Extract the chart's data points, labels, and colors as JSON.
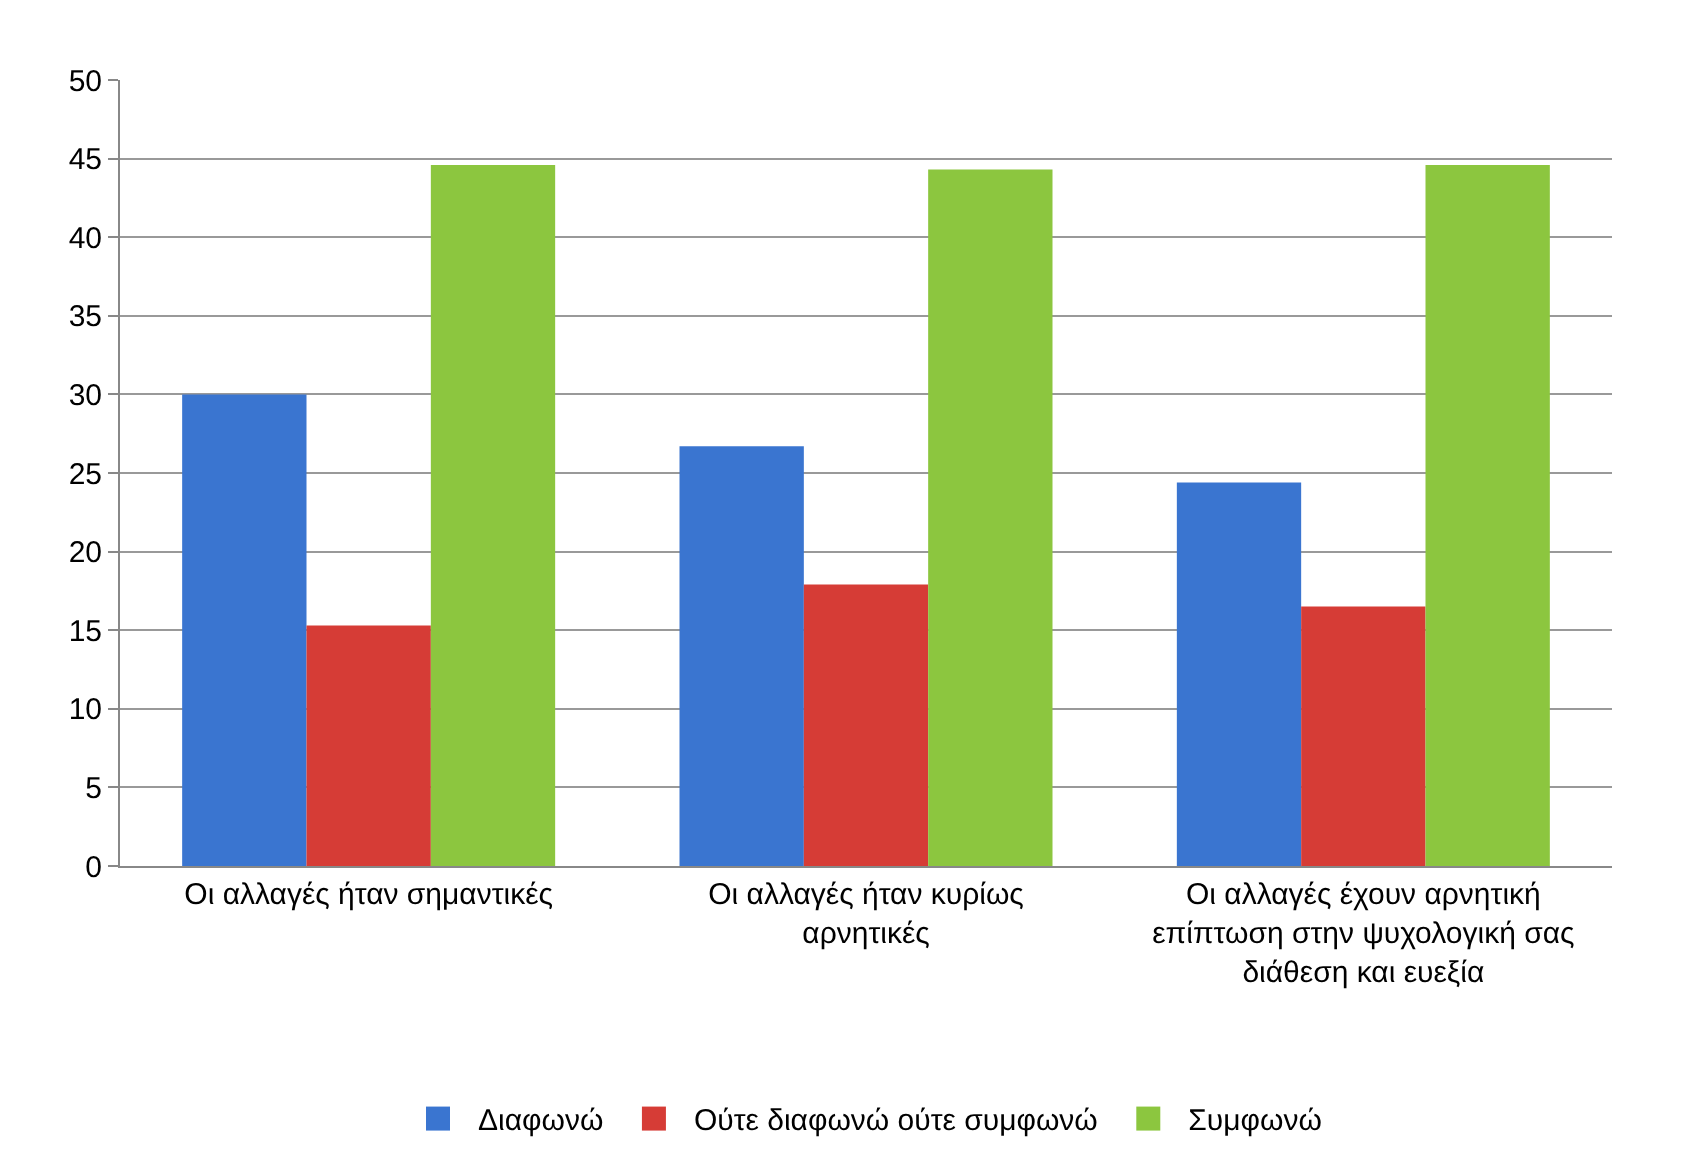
{
  "chart_data": {
    "type": "bar",
    "categories": [
      "Οι αλλαγές ήταν σημαντικές",
      "Οι αλλαγές ήταν κυρίως αρνητικές",
      "Οι αλλαγές έχουν αρνητική επίπτωση στην ψυχολογική σας διάθεση και ευεξία"
    ],
    "series": [
      {
        "name": "Διαφωνώ",
        "color": "#3a75d0",
        "values": [
          30.0,
          26.7,
          24.4
        ]
      },
      {
        "name": "Ούτε διαφωνώ ούτε συμφωνώ",
        "color": "#d63c36",
        "values": [
          15.3,
          17.9,
          16.5
        ]
      },
      {
        "name": "Συμφωνώ",
        "color": "#8cc63f",
        "values": [
          44.6,
          44.3,
          44.6
        ]
      }
    ],
    "ylim": [
      0,
      50
    ],
    "yticks": [
      0,
      5,
      10,
      15,
      20,
      25,
      30,
      35,
      40,
      45,
      50
    ],
    "grid": "y",
    "legend": "bottom"
  }
}
